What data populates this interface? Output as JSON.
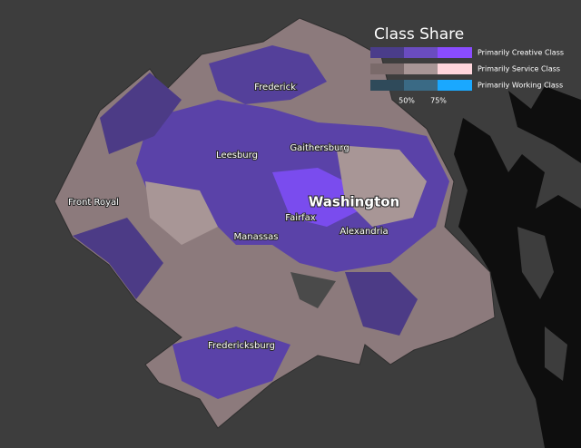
{
  "legend": {
    "title": "Class Share",
    "entries": [
      "Primarily Creative Class",
      "Primarily Service Class",
      "Primarily Working Class"
    ],
    "scale_labels": [
      "50%",
      "75%"
    ]
  },
  "cities": [
    "Frederick",
    "Leesburg",
    "Gaithersburg",
    "Front Royal",
    "Washington",
    "Fairfax",
    "Alexandria",
    "Manassas",
    "Fredericksburg"
  ]
}
